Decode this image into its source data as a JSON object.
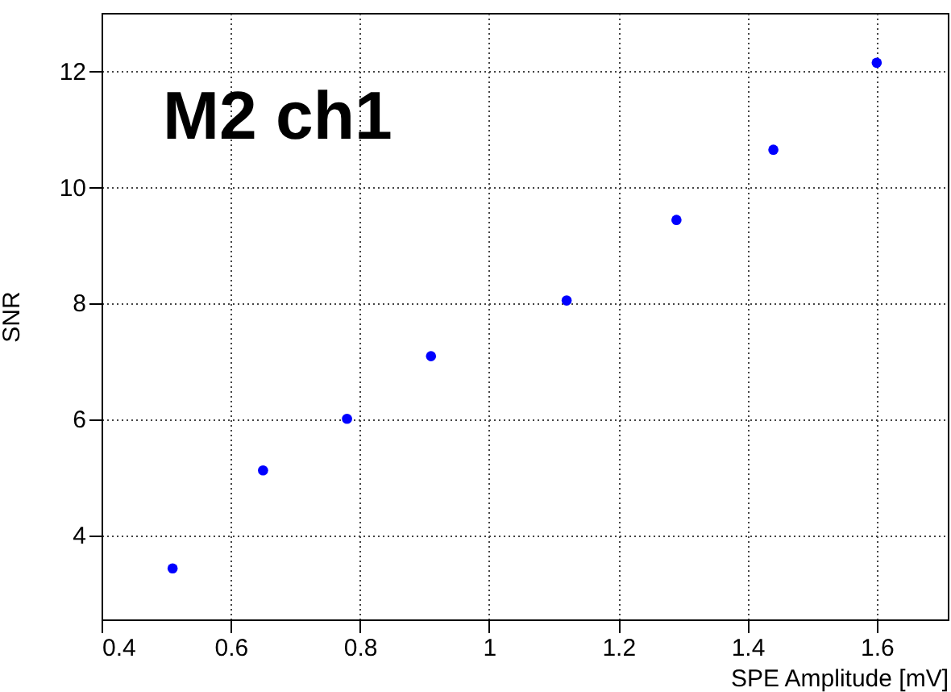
{
  "chart_data": {
    "type": "scatter",
    "xlabel": "SPE Amplitude [mV]",
    "ylabel": "SNR",
    "annotations": [
      "M2 ch1"
    ],
    "x": [
      0.51,
      0.65,
      0.78,
      0.91,
      1.12,
      1.29,
      1.44,
      1.6
    ],
    "series": [
      {
        "color": "#0000ff",
        "values": [
          3.42,
          5.11,
          6.0,
          7.08,
          8.04,
          9.43,
          10.64,
          12.14
        ]
      }
    ],
    "xlim": [
      0.4,
      1.71
    ],
    "xticks": [
      0.4,
      0.6,
      0.8,
      1,
      1.2,
      1.4,
      1.6
    ],
    "ylim": [
      2.54,
      13.0
    ],
    "yticks": [
      4,
      6,
      8,
      10,
      12
    ],
    "grid": true,
    "marker": "circle"
  }
}
